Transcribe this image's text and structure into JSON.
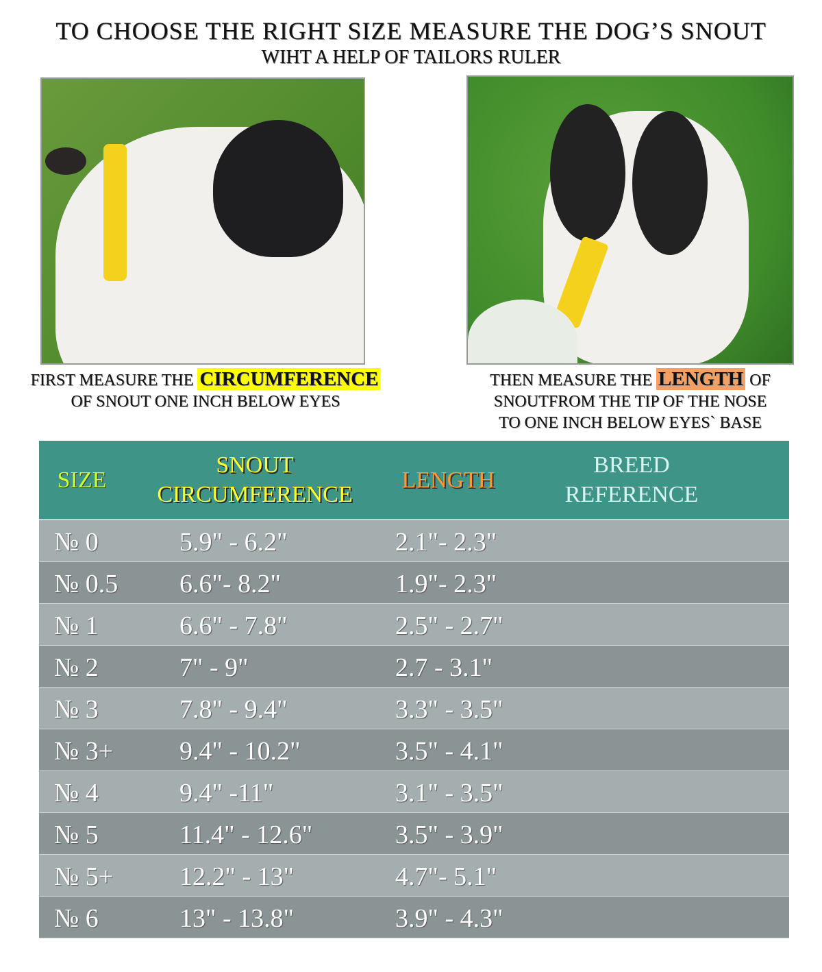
{
  "header": {
    "title": "TO CHOOSE THE RIGHT SIZE MEASURE THE DOG’S SNOUT",
    "subtitle": "WIHT A HELP OF TAILORS RULER"
  },
  "left_caption": {
    "prefix": "FIRST MEASURE THE",
    "highlight": "CIRCUMFERENCE",
    "line2": "OF SNOUT ONE INCH BELOW EYES",
    "highlight_color": "#ffff00"
  },
  "right_caption": {
    "prefix": "THEN MEASURE THE",
    "highlight": "LENGTH",
    "suffix": "OF",
    "line2": "SNOUTFROM THE TIP OF THE NOSE",
    "line3": "TO ONE INCH BELOW EYES` BASE",
    "highlight_color": "#f4a064"
  },
  "table": {
    "header_color": "#3f9488",
    "columns": {
      "size": "SIZE",
      "circ1": "SNOUT",
      "circ2": "CIRCUMFERENCE",
      "length": "LENGTH",
      "breed1": "BREED",
      "breed2": "REFERENCE"
    },
    "rows": [
      {
        "size": "№ 0",
        "circ": "5.9\" - 6.2\"",
        "length": "2.1\"- 2.3\""
      },
      {
        "size": "№ 0.5",
        "circ": "6.6\"- 8.2\"",
        "length": "1.9\"- 2.3\""
      },
      {
        "size": "№ 1",
        "circ": "6.6\" - 7.8\"",
        "length": "2.5\" - 2.7\""
      },
      {
        "size": "№ 2",
        "circ": "7\" - 9\"",
        "length": "2.7 - 3.1\""
      },
      {
        "size": "№ 3",
        "circ": "7.8\" - 9.4\"",
        "length": "3.3\" - 3.5\""
      },
      {
        "size": "№ 3+",
        "circ": "9.4\" - 10.2\"",
        "length": "3.5\" - 4.1\""
      },
      {
        "size": "№ 4",
        "circ": "9.4\" -11\"",
        "length": "3.1\" - 3.5\""
      },
      {
        "size": "№ 5",
        "circ": "11.4\" - 12.6\"",
        "length": "3.5\" - 3.9\""
      },
      {
        "size": "№ 5+",
        "circ": "12.2\" - 13\"",
        "length": "4.7\"- 5.1\""
      },
      {
        "size": "№ 6",
        "circ": "13\" - 13.8\"",
        "length": "3.9\" - 4.3\""
      }
    ]
  }
}
